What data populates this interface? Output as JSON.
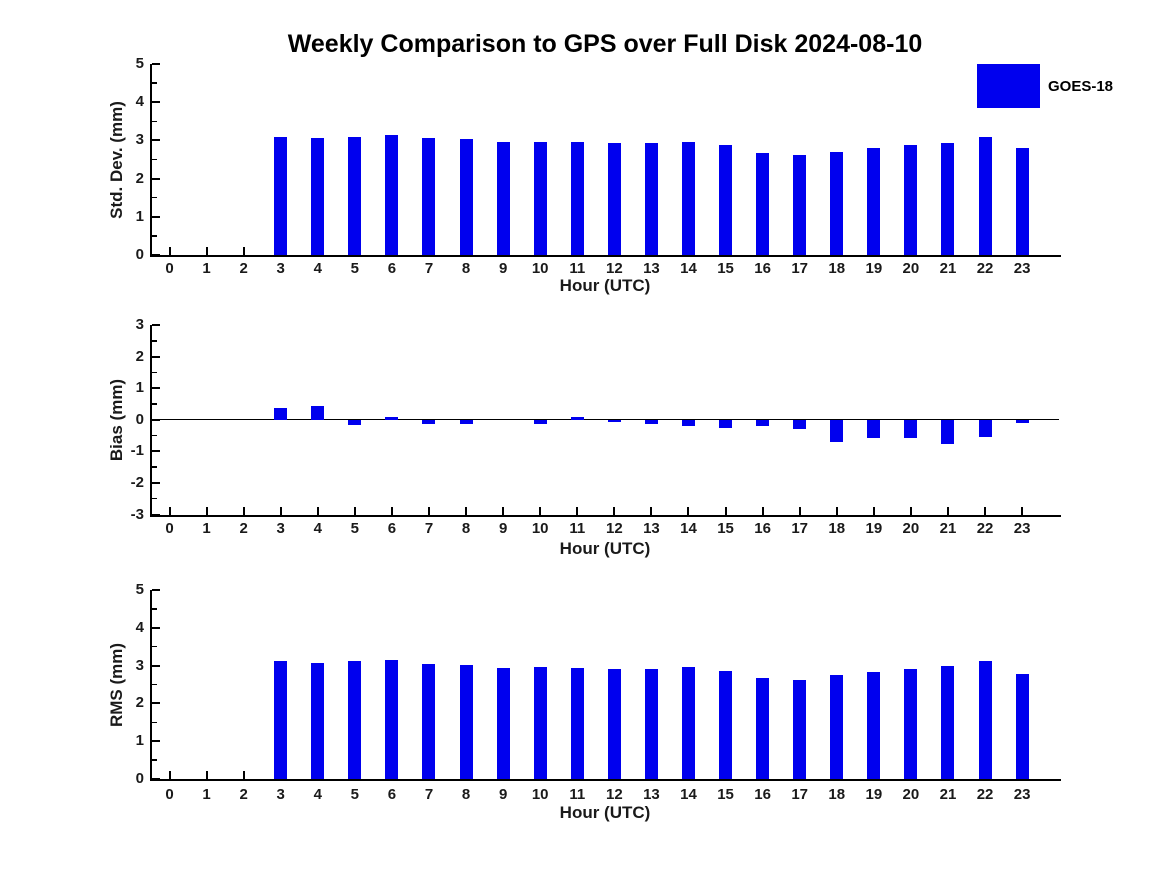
{
  "figure": {
    "title": "Weekly Comparison to GPS over Full Disk 2024-08-10",
    "background": "#ffffff",
    "axis_color": "#000000",
    "text_color": "#1a1a1a"
  },
  "legend": {
    "label": "GOES-18",
    "color": "#0000EE",
    "position": "upper-right"
  },
  "chart_data": [
    {
      "type": "bar",
      "title": "Weekly Comparison to GPS over Full Disk 2024-08-10",
      "xlabel": "Hour (UTC)",
      "ylabel": "Std. Dev. (mm)",
      "categories": [
        "0",
        "1",
        "2",
        "3",
        "4",
        "5",
        "6",
        "7",
        "8",
        "9",
        "10",
        "11",
        "12",
        "13",
        "14",
        "15",
        "16",
        "17",
        "18",
        "19",
        "20",
        "21",
        "22",
        "23"
      ],
      "series": [
        {
          "name": "GOES-18",
          "values": [
            0,
            0,
            0,
            3.1,
            3.07,
            3.1,
            3.14,
            3.06,
            3.03,
            2.95,
            2.97,
            2.95,
            2.92,
            2.93,
            2.97,
            2.87,
            2.66,
            2.63,
            2.69,
            2.79,
            2.89,
            2.93,
            3.1,
            2.79
          ]
        }
      ],
      "ylim": [
        0,
        5
      ],
      "yticks": [
        0,
        1,
        2,
        3,
        4,
        5
      ],
      "xlim": [
        -0.5,
        24
      ],
      "bar_color": "#0000EE",
      "grid": false,
      "legend_entries": [
        "GOES-18"
      ],
      "legend_position": "upper-right"
    },
    {
      "type": "bar",
      "title": "",
      "xlabel": "Hour (UTC)",
      "ylabel": "Bias (mm)",
      "categories": [
        "0",
        "1",
        "2",
        "3",
        "4",
        "5",
        "6",
        "7",
        "8",
        "9",
        "10",
        "11",
        "12",
        "13",
        "14",
        "15",
        "16",
        "17",
        "18",
        "19",
        "20",
        "21",
        "22",
        "23"
      ],
      "series": [
        {
          "name": "GOES-18",
          "values": [
            0,
            0,
            0,
            0.36,
            0.42,
            -0.16,
            0.08,
            -0.14,
            -0.14,
            0,
            -0.13,
            0.08,
            -0.08,
            -0.13,
            -0.19,
            -0.26,
            -0.2,
            -0.28,
            -0.72,
            -0.58,
            -0.57,
            -0.77,
            -0.56,
            -0.11
          ]
        }
      ],
      "ylim": [
        -3,
        3
      ],
      "yticks": [
        -3,
        -2,
        -1,
        0,
        1,
        2,
        3
      ],
      "xlim": [
        -0.5,
        24
      ],
      "bar_color": "#0000EE",
      "grid": false,
      "zero_line": true
    },
    {
      "type": "bar",
      "title": "",
      "xlabel": "Hour (UTC)",
      "ylabel": "RMS (mm)",
      "categories": [
        "0",
        "1",
        "2",
        "3",
        "4",
        "5",
        "6",
        "7",
        "8",
        "9",
        "10",
        "11",
        "12",
        "13",
        "14",
        "15",
        "16",
        "17",
        "18",
        "19",
        "20",
        "21",
        "22",
        "23"
      ],
      "series": [
        {
          "name": "GOES-18",
          "values": [
            0,
            0,
            0,
            3.13,
            3.08,
            3.13,
            3.15,
            3.05,
            3.02,
            2.94,
            2.96,
            2.94,
            2.91,
            2.91,
            2.96,
            2.86,
            2.66,
            2.63,
            2.75,
            2.83,
            2.91,
            2.99,
            3.12,
            2.78
          ]
        }
      ],
      "ylim": [
        0,
        5
      ],
      "yticks": [
        0,
        1,
        2,
        3,
        4,
        5
      ],
      "xlim": [
        -0.5,
        24
      ],
      "bar_color": "#0000EE",
      "grid": false
    }
  ]
}
